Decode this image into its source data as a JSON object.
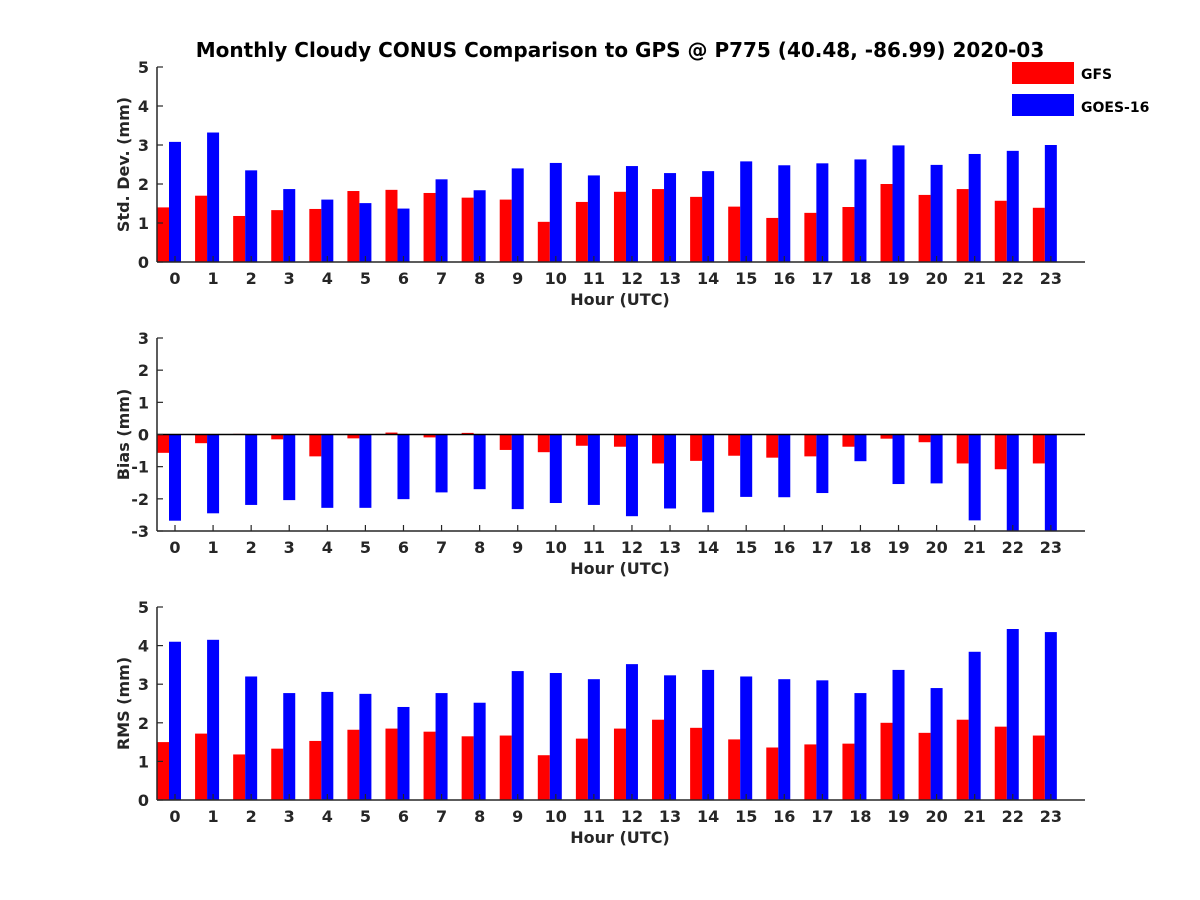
{
  "title": "Monthly Cloudy CONUS Comparison to GPS @ P775 (40.48, -86.99) 2020-03",
  "legend": {
    "placement": "top-right",
    "entries": [
      {
        "label": "GFS",
        "color": "#ff0000"
      },
      {
        "label": "GOES-16",
        "color": "#0000ff"
      }
    ]
  },
  "chart_data": [
    {
      "type": "bar",
      "xlabel": "Hour (UTC)",
      "ylabel": "Std. Dev. (mm)",
      "ylim": [
        0,
        5
      ],
      "yticks": [
        0,
        1,
        2,
        3,
        4,
        5
      ],
      "grid": false,
      "categories": [
        "0",
        "1",
        "2",
        "3",
        "4",
        "5",
        "6",
        "7",
        "8",
        "9",
        "10",
        "11",
        "12",
        "13",
        "14",
        "15",
        "16",
        "17",
        "18",
        "19",
        "20",
        "21",
        "22",
        "23"
      ],
      "series": [
        {
          "name": "GFS",
          "color": "#ff0000",
          "values": [
            1.4,
            1.7,
            1.18,
            1.33,
            1.36,
            1.82,
            1.85,
            1.77,
            1.65,
            1.6,
            1.03,
            1.54,
            1.8,
            1.87,
            1.67,
            1.42,
            1.13,
            1.26,
            1.41,
            2.0,
            1.72,
            1.87,
            1.57,
            1.39
          ]
        },
        {
          "name": "GOES-16",
          "color": "#0000ff",
          "values": [
            3.08,
            3.32,
            2.35,
            1.87,
            1.6,
            1.51,
            1.37,
            2.12,
            1.84,
            2.4,
            2.54,
            2.22,
            2.46,
            2.28,
            2.33,
            2.58,
            2.48,
            2.53,
            2.63,
            2.99,
            2.49,
            2.77,
            2.85,
            3.0
          ]
        }
      ]
    },
    {
      "type": "bar",
      "xlabel": "Hour (UTC)",
      "ylabel": "Bias (mm)",
      "ylim": [
        -3,
        3
      ],
      "yticks": [
        -3,
        -2,
        -1,
        0,
        1,
        2,
        3
      ],
      "grid": false,
      "zero_line": true,
      "categories": [
        "0",
        "1",
        "2",
        "3",
        "4",
        "5",
        "6",
        "7",
        "8",
        "9",
        "10",
        "11",
        "12",
        "13",
        "14",
        "15",
        "16",
        "17",
        "18",
        "19",
        "20",
        "21",
        "22",
        "23"
      ],
      "series": [
        {
          "name": "GFS",
          "color": "#ff0000",
          "values": [
            -0.57,
            -0.27,
            0.02,
            -0.15,
            -0.68,
            -0.12,
            0.06,
            -0.09,
            0.05,
            -0.48,
            -0.55,
            -0.35,
            -0.38,
            -0.9,
            -0.82,
            -0.66,
            -0.72,
            -0.68,
            -0.38,
            -0.13,
            -0.24,
            -0.9,
            -1.08,
            -0.9
          ]
        },
        {
          "name": "GOES-16",
          "color": "#0000ff",
          "values": [
            -2.68,
            -2.45,
            -2.19,
            -2.04,
            -2.28,
            -2.28,
            -2.01,
            -1.8,
            -1.7,
            -2.32,
            -2.13,
            -2.19,
            -2.54,
            -2.3,
            -2.42,
            -1.94,
            -1.95,
            -1.82,
            -0.83,
            -1.54,
            -1.52,
            -2.67,
            -3.0,
            -3.0
          ]
        }
      ]
    },
    {
      "type": "bar",
      "xlabel": "Hour (UTC)",
      "ylabel": "RMS (mm)",
      "ylim": [
        0,
        5
      ],
      "yticks": [
        0,
        1,
        2,
        3,
        4,
        5
      ],
      "grid": false,
      "categories": [
        "0",
        "1",
        "2",
        "3",
        "4",
        "5",
        "6",
        "7",
        "8",
        "9",
        "10",
        "11",
        "12",
        "13",
        "14",
        "15",
        "16",
        "17",
        "18",
        "19",
        "20",
        "21",
        "22",
        "23"
      ],
      "series": [
        {
          "name": "GFS",
          "color": "#ff0000",
          "values": [
            1.5,
            1.72,
            1.18,
            1.33,
            1.53,
            1.82,
            1.85,
            1.77,
            1.65,
            1.67,
            1.16,
            1.59,
            1.85,
            2.08,
            1.87,
            1.57,
            1.36,
            1.44,
            1.46,
            2.0,
            1.74,
            2.08,
            1.9,
            1.67
          ]
        },
        {
          "name": "GOES-16",
          "color": "#0000ff",
          "values": [
            4.1,
            4.15,
            3.2,
            2.77,
            2.8,
            2.75,
            2.41,
            2.77,
            2.52,
            3.34,
            3.29,
            3.13,
            3.52,
            3.23,
            3.37,
            3.2,
            3.13,
            3.1,
            2.77,
            3.37,
            2.9,
            3.84,
            4.43,
            4.35
          ]
        }
      ]
    }
  ]
}
